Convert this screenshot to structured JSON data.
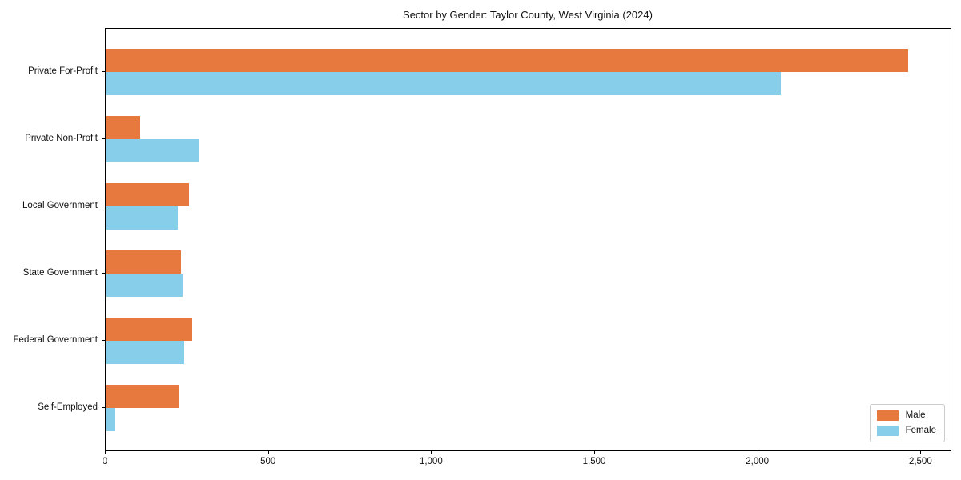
{
  "chart_data": {
    "type": "bar",
    "orientation": "horizontal",
    "title": "Sector by Gender: Taylor County, West Virginia (2024)",
    "categories": [
      "Private For-Profit",
      "Private Non-Profit",
      "Local Government",
      "State Government",
      "Federal Government",
      "Self-Employed"
    ],
    "series": [
      {
        "name": "Male",
        "color": "#e8793e",
        "values": [
          2460,
          105,
          255,
          230,
          265,
          225
        ]
      },
      {
        "name": "Female",
        "color": "#87ceeb",
        "values": [
          2070,
          285,
          220,
          235,
          240,
          30
        ]
      }
    ],
    "xlabel": "",
    "ylabel": "",
    "xlim": [
      0,
      2590
    ],
    "xticks": [
      0,
      500,
      1000,
      1500,
      2000,
      2500
    ],
    "xtick_labels": [
      "0",
      "500",
      "1,000",
      "1,500",
      "2,000",
      "2,500"
    ],
    "grid": false,
    "legend_position": "lower right"
  }
}
